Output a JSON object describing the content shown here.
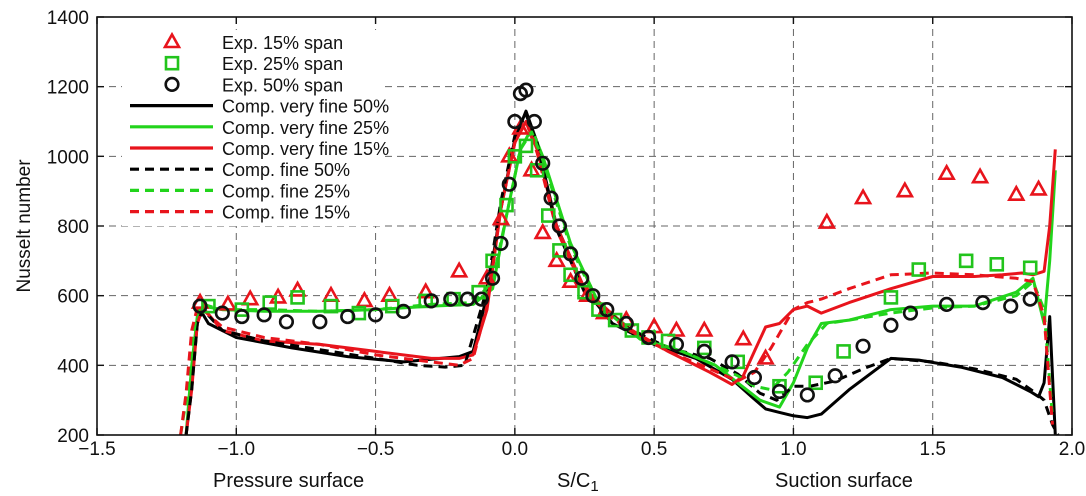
{
  "chart_data": {
    "type": "scatter",
    "xlabel": "S/C",
    "xlabel_sub": "1",
    "ylabel": "Nusselt number",
    "bottom_labels": {
      "left": "Pressure surface",
      "right": "Suction surface"
    },
    "xlim": [
      -1.5,
      2.0
    ],
    "ylim": [
      200,
      1400
    ],
    "xticks": [
      -1.5,
      -1.0,
      -0.5,
      0.0,
      0.5,
      1.0,
      1.5,
      2.0
    ],
    "xtick_labels": [
      "−1.5",
      "−1.0",
      "−0.5",
      "0.0",
      "0.5",
      "1.0",
      "1.5",
      "2.0"
    ],
    "yticks": [
      200,
      400,
      600,
      800,
      1000,
      1200,
      1400
    ],
    "ytick_labels": [
      "200",
      "400",
      "600",
      "800",
      "1000",
      "1200",
      "1400"
    ],
    "grid": true,
    "legend_position": "top-left",
    "series": [
      {
        "name": "Exp. 15% span",
        "kind": "marker",
        "marker": "triangle",
        "color": "#e8141c",
        "x": [
          -1.13,
          -1.03,
          -0.95,
          -0.85,
          -0.78,
          -0.66,
          -0.54,
          -0.45,
          -0.32,
          -0.2,
          -0.1,
          -0.05,
          -0.02,
          0.02,
          0.06,
          0.1,
          0.15,
          0.2,
          0.26,
          0.32,
          0.4,
          0.5,
          0.58,
          0.68,
          0.82,
          0.9,
          1.12,
          1.25,
          1.4,
          1.55,
          1.67,
          1.8,
          1.88
        ],
        "y": [
          580,
          575,
          590,
          595,
          615,
          600,
          585,
          600,
          610,
          670,
          650,
          820,
          1000,
          1080,
          960,
          780,
          700,
          640,
          600,
          550,
          530,
          510,
          500,
          500,
          475,
          420,
          810,
          880,
          900,
          950,
          940,
          890,
          905
        ]
      },
      {
        "name": "Exp. 25% span",
        "kind": "marker",
        "marker": "square",
        "color": "#22c41c",
        "x": [
          -1.1,
          -0.98,
          -0.88,
          -0.78,
          -0.66,
          -0.56,
          -0.44,
          -0.32,
          -0.22,
          -0.13,
          -0.08,
          -0.03,
          0.0,
          0.04,
          0.08,
          0.12,
          0.16,
          0.2,
          0.25,
          0.3,
          0.36,
          0.42,
          0.48,
          0.55,
          0.68,
          0.8,
          0.95,
          1.08,
          1.18,
          1.35,
          1.45,
          1.62,
          1.73,
          1.85
        ],
        "y": [
          570,
          560,
          580,
          595,
          570,
          550,
          570,
          585,
          590,
          610,
          700,
          860,
          1000,
          1030,
          960,
          830,
          730,
          660,
          610,
          560,
          530,
          500,
          480,
          470,
          450,
          410,
          340,
          350,
          440,
          595,
          675,
          700,
          690,
          680
        ]
      },
      {
        "name": "Exp. 50% span",
        "kind": "marker",
        "marker": "circle",
        "color": "#111111",
        "x": [
          -1.13,
          -1.05,
          -0.98,
          -0.9,
          -0.82,
          -0.7,
          -0.6,
          -0.5,
          -0.4,
          -0.3,
          -0.23,
          -0.17,
          -0.12,
          -0.08,
          -0.05,
          -0.02,
          0.0,
          0.02,
          0.04,
          0.07,
          0.1,
          0.13,
          0.16,
          0.2,
          0.24,
          0.28,
          0.33,
          0.4,
          0.48,
          0.58,
          0.68,
          0.78,
          0.86,
          0.95,
          1.05,
          1.15,
          1.25,
          1.35,
          1.42,
          1.55,
          1.68,
          1.78,
          1.85
        ],
        "y": [
          570,
          550,
          540,
          545,
          525,
          525,
          540,
          545,
          555,
          585,
          590,
          590,
          590,
          650,
          750,
          920,
          1100,
          1180,
          1190,
          1100,
          980,
          880,
          800,
          720,
          650,
          600,
          560,
          520,
          480,
          460,
          440,
          410,
          365,
          325,
          315,
          370,
          455,
          515,
          550,
          575,
          580,
          570,
          590
        ]
      },
      {
        "name": "Comp. very fine 50%",
        "kind": "line",
        "dash": "solid",
        "color": "#000000",
        "x": [
          -1.18,
          -1.16,
          -1.14,
          -1.13,
          -1.1,
          -1.0,
          -0.8,
          -0.6,
          -0.4,
          -0.2,
          -0.15,
          -0.1,
          -0.05,
          0.0,
          0.04,
          0.08,
          0.15,
          0.25,
          0.35,
          0.5,
          0.65,
          0.78,
          0.85,
          0.9,
          0.95,
          1.0,
          1.05,
          1.1,
          1.2,
          1.35,
          1.45,
          1.6,
          1.75,
          1.85,
          1.88,
          1.9,
          1.92,
          1.94
        ],
        "y": [
          200,
          350,
          520,
          560,
          520,
          480,
          450,
          425,
          410,
          425,
          440,
          600,
          850,
          1050,
          1130,
          1040,
          800,
          620,
          520,
          460,
          420,
          360,
          310,
          275,
          265,
          255,
          250,
          260,
          330,
          420,
          415,
          395,
          365,
          325,
          310,
          350,
          540,
          200
        ]
      },
      {
        "name": "Comp. very fine 25%",
        "kind": "line",
        "dash": "solid",
        "color": "#22d41c",
        "x": [
          -1.18,
          -1.16,
          -1.14,
          -1.12,
          -1.05,
          -0.9,
          -0.7,
          -0.5,
          -0.3,
          -0.15,
          -0.08,
          -0.03,
          0.02,
          0.06,
          0.1,
          0.2,
          0.3,
          0.45,
          0.6,
          0.72,
          0.8,
          0.88,
          0.95,
          1.0,
          1.05,
          1.1,
          1.2,
          1.35,
          1.5,
          1.65,
          1.8,
          1.86,
          1.9,
          1.92,
          1.94
        ],
        "y": [
          200,
          400,
          540,
          570,
          560,
          555,
          555,
          560,
          570,
          575,
          620,
          830,
          1020,
          1080,
          1000,
          750,
          580,
          480,
          440,
          400,
          350,
          300,
          280,
          350,
          450,
          520,
          530,
          560,
          570,
          570,
          610,
          650,
          520,
          700,
          960
        ]
      },
      {
        "name": "Comp. very fine 15%",
        "kind": "line",
        "dash": "solid",
        "color": "#e8141c",
        "x": [
          -1.18,
          -1.16,
          -1.14,
          -1.12,
          -1.05,
          -0.9,
          -0.7,
          -0.5,
          -0.3,
          -0.2,
          -0.15,
          -0.1,
          -0.05,
          0.0,
          0.04,
          0.08,
          0.15,
          0.25,
          0.4,
          0.55,
          0.7,
          0.78,
          0.82,
          0.86,
          0.9,
          0.95,
          1.0,
          1.05,
          1.1,
          1.2,
          1.35,
          1.5,
          1.65,
          1.75,
          1.82,
          1.86,
          1.9,
          1.92,
          1.94
        ],
        "y": [
          200,
          330,
          520,
          565,
          500,
          470,
          460,
          440,
          420,
          420,
          430,
          560,
          850,
          1040,
          1100,
          1020,
          800,
          620,
          510,
          440,
          380,
          345,
          370,
          440,
          510,
          520,
          560,
          570,
          550,
          580,
          620,
          655,
          655,
          660,
          665,
          660,
          670,
          800,
          1020
        ]
      },
      {
        "name": "Comp. fine 50%",
        "kind": "line",
        "dash": "dashed",
        "color": "#000000",
        "x": [
          -1.18,
          -1.16,
          -1.14,
          -1.12,
          -1.05,
          -0.9,
          -0.7,
          -0.5,
          -0.35,
          -0.25,
          -0.18,
          -0.1,
          -0.05,
          0.0,
          0.04,
          0.08,
          0.15,
          0.25,
          0.4,
          0.55,
          0.7,
          0.8,
          0.88,
          0.94,
          1.0,
          1.06,
          1.15,
          1.25,
          1.35,
          1.5,
          1.65,
          1.8,
          1.87,
          1.9,
          1.93,
          1.95
        ],
        "y": [
          200,
          330,
          520,
          560,
          500,
          470,
          445,
          420,
          400,
          395,
          400,
          620,
          870,
          1060,
          1120,
          1040,
          790,
          610,
          510,
          450,
          420,
          375,
          320,
          300,
          340,
          340,
          355,
          390,
          420,
          410,
          390,
          360,
          320,
          300,
          230,
          200
        ]
      },
      {
        "name": "Comp. fine 25%",
        "kind": "line",
        "dash": "dashed",
        "color": "#22d41c",
        "x": [
          -1.2,
          -1.18,
          -1.16,
          -1.14,
          -1.12,
          -1.05,
          -0.9,
          -0.7,
          -0.5,
          -0.3,
          -0.15,
          -0.08,
          -0.03,
          0.02,
          0.06,
          0.1,
          0.2,
          0.3,
          0.45,
          0.6,
          0.72,
          0.8,
          0.86,
          0.92,
          0.98,
          1.05,
          1.12,
          1.2,
          1.35,
          1.5,
          1.65,
          1.8,
          1.86,
          1.9,
          1.93
        ],
        "y": [
          200,
          300,
          450,
          560,
          575,
          560,
          560,
          555,
          560,
          575,
          580,
          640,
          830,
          1020,
          1070,
          990,
          740,
          575,
          475,
          440,
          400,
          370,
          340,
          330,
          380,
          460,
          520,
          530,
          550,
          565,
          570,
          600,
          640,
          560,
          250
        ]
      },
      {
        "name": "Comp. fine 15%",
        "kind": "line",
        "dash": "dashed",
        "color": "#e8141c",
        "x": [
          -1.2,
          -1.18,
          -1.16,
          -1.14,
          -1.12,
          -1.05,
          -0.9,
          -0.7,
          -0.5,
          -0.3,
          -0.2,
          -0.15,
          -0.1,
          -0.05,
          0.0,
          0.04,
          0.08,
          0.15,
          0.25,
          0.4,
          0.55,
          0.7,
          0.8,
          0.86,
          0.92,
          1.0,
          1.05,
          1.1,
          1.2,
          1.35,
          1.5,
          1.65,
          1.8,
          1.86,
          1.9,
          1.93
        ],
        "y": [
          200,
          320,
          500,
          565,
          560,
          510,
          480,
          460,
          430,
          410,
          400,
          420,
          570,
          850,
          1040,
          1100,
          1010,
          790,
          610,
          505,
          440,
          390,
          355,
          380,
          450,
          560,
          580,
          590,
          620,
          660,
          665,
          660,
          650,
          640,
          540,
          230
        ]
      }
    ]
  }
}
